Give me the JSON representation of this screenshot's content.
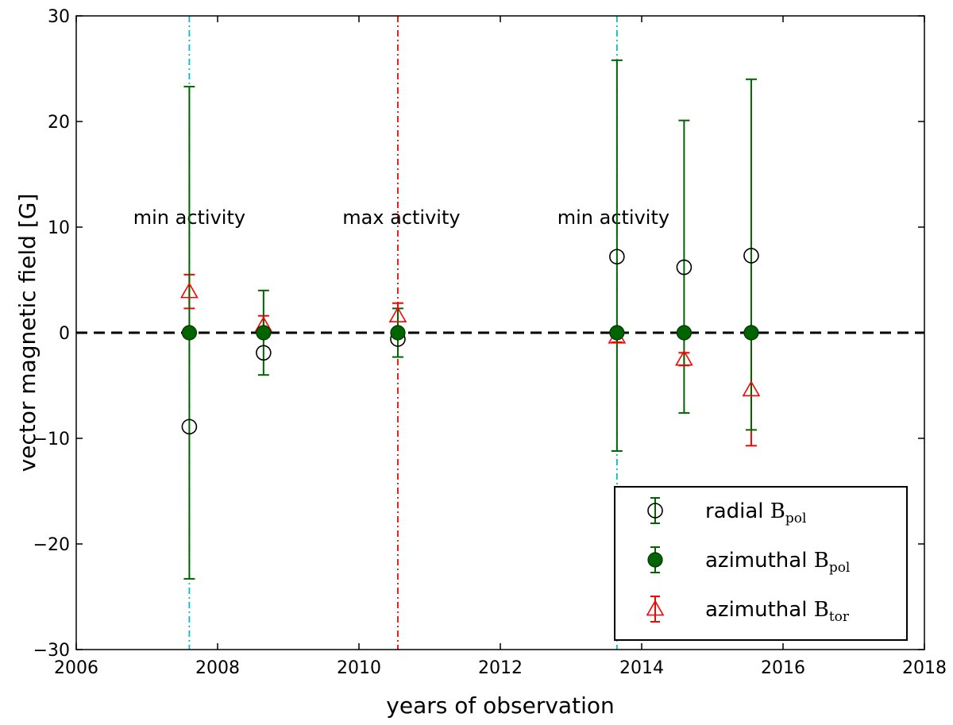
{
  "chart_data": {
    "type": "scatter",
    "title": "",
    "xlabel": "years of observation",
    "ylabel": "vector magnetic field [G]",
    "xlim": [
      2006,
      2018
    ],
    "ylim": [
      -30,
      30
    ],
    "xticks": [
      2006,
      2008,
      2010,
      2012,
      2014,
      2016,
      2018
    ],
    "yticks": [
      -30,
      -20,
      -10,
      0,
      10,
      20,
      30
    ],
    "xtick_labels": [
      "2006",
      "2008",
      "2010",
      "2012",
      "2014",
      "2016",
      "2018"
    ],
    "ytick_labels": [
      "−30",
      "−20",
      "−10",
      "0",
      "10",
      "20",
      "30"
    ],
    "grid": false,
    "legend_position": "bottom-right",
    "zero_line": {
      "y": 0,
      "style": "dashed",
      "color": "#000000"
    },
    "vertical_lines": [
      {
        "x": 2007.6,
        "color": "#00bfbf",
        "style": "dash-dot"
      },
      {
        "x": 2010.55,
        "color": "#ff0000",
        "style": "dash-dot"
      },
      {
        "x": 2013.65,
        "color": "#00bfbf",
        "style": "dash-dot"
      }
    ],
    "annotations": [
      {
        "text": "min activity",
        "x": 2007.6,
        "y": 10.3
      },
      {
        "text": "max activity",
        "x": 2010.6,
        "y": 10.3
      },
      {
        "text": "min activity",
        "x": 2013.6,
        "y": 10.3
      }
    ],
    "series": [
      {
        "name_main": "radial",
        "name_symbol": "B",
        "name_sub": "pol",
        "marker": "open-circle",
        "color": "#000000",
        "errcolor": "#006400",
        "x": [
          2007.6,
          2008.65,
          2010.55,
          2013.65,
          2014.6,
          2015.55
        ],
        "y": [
          -8.9,
          -1.9,
          -0.6,
          7.2,
          6.2,
          7.3
        ],
        "err": [
          null,
          null,
          null,
          null,
          null,
          null
        ]
      },
      {
        "name_main": "azimuthal",
        "name_symbol": "B",
        "name_sub": "pol",
        "marker": "filled-circle",
        "color": "#006400",
        "errcolor": "#006400",
        "x": [
          2007.6,
          2008.65,
          2010.55,
          2013.65,
          2014.6,
          2015.55
        ],
        "y": [
          0,
          0,
          0,
          0,
          0,
          0
        ],
        "err": [
          23.3,
          4.0,
          2.3,
          25.8,
          20.1,
          24.0
        ],
        "err_low": [
          23.3,
          4.0,
          2.3,
          11.2,
          7.6,
          9.2
        ]
      },
      {
        "name_main": "azimuthal",
        "name_symbol": "B",
        "name_sub": "tor",
        "marker": "open-triangle",
        "color": "#ff0000",
        "errcolor": "#ff0000",
        "x": [
          2007.6,
          2008.65,
          2010.55,
          2013.65,
          2014.6,
          2015.55
        ],
        "y": [
          3.9,
          0.7,
          1.6,
          -0.4,
          -2.5,
          -5.4
        ],
        "err": [
          1.6,
          0.9,
          1.2,
          0.5,
          0.6,
          5.3
        ]
      }
    ]
  }
}
